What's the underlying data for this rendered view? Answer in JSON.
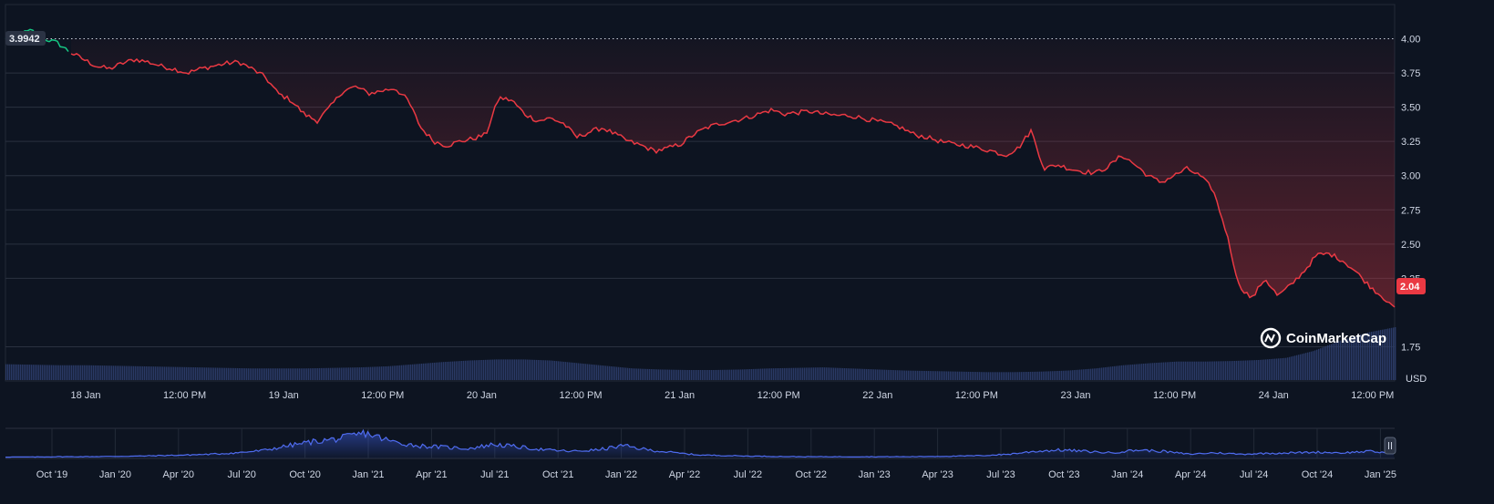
{
  "chart_data": {
    "type": "line",
    "currency_label": "USD",
    "price_start_label": "3.9942",
    "price_last_label": "2.04",
    "baseline": 4.0,
    "ylim": [
      1.5,
      4.25
    ],
    "yticks": [
      {
        "value": 4.0,
        "label": "4.00"
      },
      {
        "value": 3.75,
        "label": "3.75"
      },
      {
        "value": 3.5,
        "label": "3.50"
      },
      {
        "value": 3.25,
        "label": "3.25"
      },
      {
        "value": 3.0,
        "label": "3.00"
      },
      {
        "value": 2.75,
        "label": "2.75"
      },
      {
        "value": 2.5,
        "label": "2.50"
      },
      {
        "value": 2.25,
        "label": "2.25"
      },
      {
        "value": 1.75,
        "label": "1.75"
      }
    ],
    "xticks": [
      "18 Jan",
      "12:00 PM",
      "19 Jan",
      "12:00 PM",
      "20 Jan",
      "12:00 PM",
      "21 Jan",
      "12:00 PM",
      "22 Jan",
      "12:00 PM",
      "23 Jan",
      "12:00 PM",
      "24 Jan",
      "12:00 PM"
    ],
    "price_series": [
      4.0,
      4.03,
      4.06,
      4.0,
      3.97,
      3.9,
      3.85,
      3.8,
      3.78,
      3.82,
      3.85,
      3.83,
      3.8,
      3.78,
      3.75,
      3.78,
      3.8,
      3.82,
      3.83,
      3.78,
      3.72,
      3.6,
      3.55,
      3.45,
      3.4,
      3.5,
      3.62,
      3.65,
      3.6,
      3.62,
      3.64,
      3.55,
      3.35,
      3.25,
      3.22,
      3.25,
      3.27,
      3.3,
      3.57,
      3.55,
      3.45,
      3.4,
      3.42,
      3.38,
      3.28,
      3.32,
      3.35,
      3.3,
      3.25,
      3.22,
      3.18,
      3.2,
      3.23,
      3.3,
      3.35,
      3.38,
      3.4,
      3.42,
      3.45,
      3.48,
      3.45,
      3.46,
      3.47,
      3.45,
      3.44,
      3.44,
      3.42,
      3.4,
      3.38,
      3.35,
      3.3,
      3.28,
      3.25,
      3.23,
      3.22,
      3.2,
      3.18,
      3.15,
      3.2,
      3.33,
      3.05,
      3.08,
      3.05,
      3.03,
      3.02,
      3.07,
      3.15,
      3.08,
      3.0,
      2.95,
      3.0,
      3.05,
      3.0,
      2.9,
      2.6,
      2.2,
      2.1,
      2.25,
      2.12,
      2.2,
      2.3,
      2.42,
      2.43,
      2.38,
      2.3,
      2.2,
      2.12,
      2.04
    ],
    "volume_series": [
      0.3,
      0.29,
      0.28,
      0.28,
      0.27,
      0.26,
      0.25,
      0.24,
      0.23,
      0.22,
      0.22,
      0.22,
      0.23,
      0.24,
      0.26,
      0.3,
      0.34,
      0.37,
      0.39,
      0.39,
      0.37,
      0.32,
      0.27,
      0.22,
      0.2,
      0.19,
      0.19,
      0.2,
      0.22,
      0.23,
      0.24,
      0.22,
      0.2,
      0.18,
      0.17,
      0.16,
      0.15,
      0.15,
      0.16,
      0.18,
      0.22,
      0.28,
      0.32,
      0.35,
      0.35,
      0.36,
      0.38,
      0.42,
      0.55,
      0.75,
      0.9,
      1.0
    ],
    "navigator": {
      "xticks": [
        "Oct '19",
        "Jan '20",
        "Apr '20",
        "Jul '20",
        "Oct '20",
        "Jan '21",
        "Apr '21",
        "Jul '21",
        "Oct '21",
        "Jan '22",
        "Apr '22",
        "Jul '22",
        "Oct '22",
        "Jan '23",
        "Apr '23",
        "Jul '23",
        "Oct '23",
        "Jan '24",
        "Apr '24",
        "Jul '24",
        "Oct '24",
        "Jan '25"
      ],
      "series": [
        0.05,
        0.05,
        0.06,
        0.06,
        0.07,
        0.08,
        0.1,
        0.12,
        0.15,
        0.2,
        0.28,
        0.45,
        0.6,
        0.7,
        0.9,
        0.6,
        0.45,
        0.4,
        0.35,
        0.5,
        0.4,
        0.3,
        0.25,
        0.3,
        0.45,
        0.3,
        0.2,
        0.12,
        0.1,
        0.08,
        0.07,
        0.06,
        0.06,
        0.06,
        0.06,
        0.06,
        0.07,
        0.08,
        0.1,
        0.15,
        0.25,
        0.3,
        0.25,
        0.2,
        0.3,
        0.25,
        0.15,
        0.2,
        0.15,
        0.18,
        0.2,
        0.22,
        0.2,
        0.25,
        0.18
      ]
    }
  },
  "brand": {
    "name": "CoinMarketCap"
  },
  "colors": {
    "down": "#ea3943",
    "up": "#16c784",
    "volume": "#2a3a66",
    "navigator": "#3b5bdb"
  }
}
